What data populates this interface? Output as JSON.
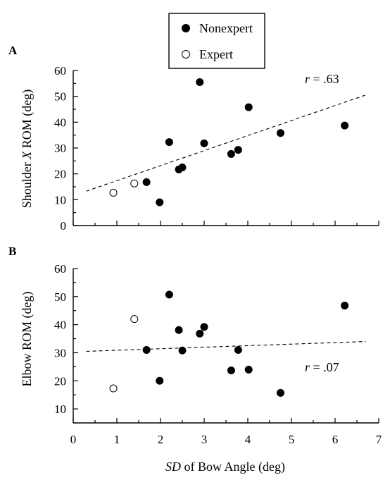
{
  "legend": {
    "placement": "top-center",
    "entries": [
      {
        "label": "Nonexpert",
        "marker": "filled-circle"
      },
      {
        "label": "Expert",
        "marker": "open-circle"
      }
    ]
  },
  "x_axis": {
    "label_italic": "SD",
    "label_rest": " of Bow Angle (deg)",
    "range": [
      0,
      7
    ],
    "ticks": [
      0,
      1,
      2,
      3,
      4,
      5,
      6,
      7
    ],
    "minor_step": 0.5
  },
  "colors": {
    "ink": "#000000",
    "open_fill": "#ffffff"
  },
  "chart_data": [
    {
      "type": "scatter",
      "panel_label": "A",
      "ylabel_pre": "Shoulder ",
      "ylabel_italic": "X",
      "ylabel_post": " ROM (deg)",
      "ylim": [
        0,
        60
      ],
      "yticks": [
        0,
        10,
        20,
        30,
        40,
        50,
        60
      ],
      "r_italic": "r",
      "r_rest": " = .63",
      "r_position": "top-right",
      "trendline": {
        "x": [
          0.3,
          6.7
        ],
        "y": [
          13.3,
          50.5
        ],
        "style": "dashed"
      },
      "series": [
        {
          "name": "Nonexpert",
          "marker": "filled",
          "points": [
            {
              "x": 1.68,
              "y": 16.8
            },
            {
              "x": 1.98,
              "y": 9.0
            },
            {
              "x": 2.2,
              "y": 32.3
            },
            {
              "x": 2.42,
              "y": 21.7
            },
            {
              "x": 2.5,
              "y": 22.5
            },
            {
              "x": 2.9,
              "y": 55.5
            },
            {
              "x": 3.0,
              "y": 31.8
            },
            {
              "x": 3.62,
              "y": 27.7
            },
            {
              "x": 3.78,
              "y": 29.3
            },
            {
              "x": 4.02,
              "y": 45.8
            },
            {
              "x": 4.75,
              "y": 35.8
            },
            {
              "x": 6.22,
              "y": 38.7
            }
          ]
        },
        {
          "name": "Expert",
          "marker": "open",
          "points": [
            {
              "x": 0.92,
              "y": 12.7
            },
            {
              "x": 1.4,
              "y": 16.3
            }
          ]
        }
      ]
    },
    {
      "type": "scatter",
      "panel_label": "B",
      "ylabel_pre": "Elbow ROM (deg)",
      "ylabel_italic": "",
      "ylabel_post": "",
      "ylim": [
        5,
        60
      ],
      "yticks": [
        10,
        20,
        30,
        40,
        50,
        60
      ],
      "r_italic": "r",
      "r_rest": " = .07",
      "r_position": "bottom-right",
      "trendline": {
        "x": [
          0.3,
          6.7
        ],
        "y": [
          30.5,
          34.0
        ],
        "style": "dashed"
      },
      "series": [
        {
          "name": "Nonexpert",
          "marker": "filled",
          "points": [
            {
              "x": 1.68,
              "y": 31.0
            },
            {
              "x": 1.98,
              "y": 20.0
            },
            {
              "x": 2.2,
              "y": 50.7
            },
            {
              "x": 2.42,
              "y": 38.1
            },
            {
              "x": 2.5,
              "y": 30.8
            },
            {
              "x": 2.9,
              "y": 36.8
            },
            {
              "x": 3.0,
              "y": 39.2
            },
            {
              "x": 3.62,
              "y": 23.7
            },
            {
              "x": 3.78,
              "y": 31.0
            },
            {
              "x": 4.02,
              "y": 24.0
            },
            {
              "x": 4.75,
              "y": 15.7
            },
            {
              "x": 6.22,
              "y": 46.8
            }
          ]
        },
        {
          "name": "Expert",
          "marker": "open",
          "points": [
            {
              "x": 0.92,
              "y": 17.3
            },
            {
              "x": 1.4,
              "y": 42.0
            }
          ]
        }
      ]
    }
  ]
}
